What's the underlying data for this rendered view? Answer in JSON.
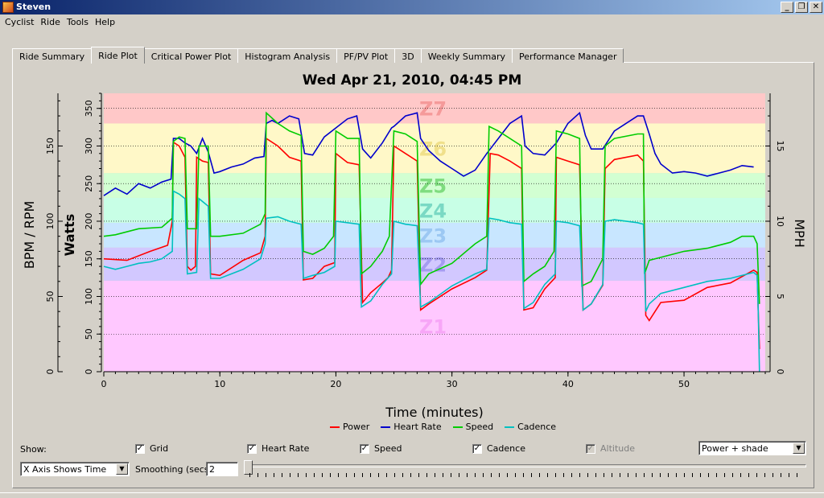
{
  "window": {
    "title": "Steven",
    "buttons": [
      "_",
      "❐",
      "✕"
    ]
  },
  "menu": [
    {
      "label": "Cyclist",
      "u": "C"
    },
    {
      "label": "Ride",
      "u": "R"
    },
    {
      "label": "Tools",
      "u": "T"
    },
    {
      "label": "Help",
      "u": "H"
    }
  ],
  "tabs": [
    "Ride Summary",
    "Ride Plot",
    "Critical Power Plot",
    "Histogram Analysis",
    "PF/PV Plot",
    "3D",
    "Weekly Summary",
    "Performance Manager"
  ],
  "active_tab": "Ride Plot",
  "chart_data": {
    "type": "line",
    "title": "Wed Apr 21, 2010, 04:45 PM",
    "xlabel": "Time (minutes)",
    "ylabel_left_outer": "BPM / RPM",
    "ylabel_left_inner": "Watts",
    "ylabel_right": "MPH",
    "xlim": [
      0,
      57
    ],
    "xticks": [
      0,
      10,
      20,
      30,
      40,
      50
    ],
    "watts_ylim": [
      0,
      370
    ],
    "watts_ticks": [
      0,
      50,
      100,
      150,
      200,
      250,
      300,
      350
    ],
    "bpm_ylim": [
      0,
      185
    ],
    "bpm_ticks": [
      0,
      50,
      100,
      150
    ],
    "mph_ylim": [
      0,
      18.5
    ],
    "mph_ticks": [
      0,
      5,
      10,
      15
    ],
    "grid": true,
    "legend_position": "bottom",
    "zones": [
      {
        "name": "Z1",
        "from": 0,
        "to": 121,
        "color": "#ffc8ff"
      },
      {
        "name": "Z2",
        "from": 121,
        "to": 165,
        "color": "#d2c8ff"
      },
      {
        "name": "Z3",
        "from": 165,
        "to": 198,
        "color": "#c8e6ff"
      },
      {
        "name": "Z4",
        "from": 198,
        "to": 231,
        "color": "#c8ffe6"
      },
      {
        "name": "Z5",
        "from": 231,
        "to": 264,
        "color": "#d2ffd2"
      },
      {
        "name": "Z6",
        "from": 264,
        "to": 330,
        "color": "#fff8c8"
      },
      {
        "name": "Z7",
        "from": 330,
        "to": 370,
        "color": "#ffc8c8"
      }
    ],
    "series": [
      {
        "name": "Power",
        "axis": "watts",
        "color": "#ff0000",
        "points": [
          [
            0,
            150
          ],
          [
            2,
            148
          ],
          [
            4,
            160
          ],
          [
            5.5,
            168
          ],
          [
            5.9,
            200
          ],
          [
            6,
            305
          ],
          [
            6.5,
            300
          ],
          [
            7,
            285
          ],
          [
            7.2,
            140
          ],
          [
            7.5,
            135
          ],
          [
            7.9,
            140
          ],
          [
            8,
            285
          ],
          [
            8.5,
            280
          ],
          [
            9,
            278
          ],
          [
            9.2,
            130
          ],
          [
            10,
            128
          ],
          [
            12,
            148
          ],
          [
            13.5,
            158
          ],
          [
            13.9,
            180
          ],
          [
            14,
            310
          ],
          [
            15,
            300
          ],
          [
            16,
            285
          ],
          [
            17,
            280
          ],
          [
            17.2,
            122
          ],
          [
            18,
            124
          ],
          [
            19,
            140
          ],
          [
            19.9,
            145
          ],
          [
            20,
            290
          ],
          [
            21,
            278
          ],
          [
            22,
            275
          ],
          [
            22.3,
            92
          ],
          [
            23,
            105
          ],
          [
            24,
            118
          ],
          [
            24.5,
            125
          ],
          [
            24.8,
            135
          ],
          [
            25,
            300
          ],
          [
            26,
            290
          ],
          [
            27,
            280
          ],
          [
            27.3,
            82
          ],
          [
            28,
            90
          ],
          [
            30,
            110
          ],
          [
            32,
            125
          ],
          [
            33,
            135
          ],
          [
            33.3,
            290
          ],
          [
            34,
            288
          ],
          [
            35,
            280
          ],
          [
            36,
            270
          ],
          [
            36.2,
            82
          ],
          [
            37,
            85
          ],
          [
            38,
            110
          ],
          [
            38.9,
            125
          ],
          [
            39,
            285
          ],
          [
            40,
            280
          ],
          [
            41,
            275
          ],
          [
            41.3,
            82
          ],
          [
            42,
            90
          ],
          [
            43,
            115
          ],
          [
            43.2,
            270
          ],
          [
            44,
            282
          ],
          [
            46,
            288
          ],
          [
            46.5,
            280
          ],
          [
            46.7,
            75
          ],
          [
            47,
            68
          ],
          [
            48,
            92
          ],
          [
            50,
            95
          ],
          [
            52,
            112
          ],
          [
            54,
            118
          ],
          [
            56,
            135
          ],
          [
            56.3,
            132
          ],
          [
            56.4,
            80
          ],
          [
            56.5,
            30
          ]
        ]
      },
      {
        "name": "Heart Rate",
        "axis": "bpm",
        "color": "#0000cc",
        "points": [
          [
            0,
            117
          ],
          [
            1,
            122
          ],
          [
            2,
            118
          ],
          [
            3,
            125
          ],
          [
            4,
            122
          ],
          [
            5,
            126
          ],
          [
            5.8,
            128
          ],
          [
            6,
            155
          ],
          [
            6.5,
            155
          ],
          [
            7,
            152
          ],
          [
            7.5,
            150
          ],
          [
            8,
            145
          ],
          [
            8.5,
            155
          ],
          [
            9,
            146
          ],
          [
            9.5,
            132
          ],
          [
            10,
            133
          ],
          [
            11,
            136
          ],
          [
            12,
            138
          ],
          [
            13,
            142
          ],
          [
            13.8,
            143
          ],
          [
            14,
            165
          ],
          [
            14.5,
            167
          ],
          [
            15,
            165
          ],
          [
            16,
            170
          ],
          [
            16.8,
            168
          ],
          [
            17.3,
            145
          ],
          [
            18,
            144
          ],
          [
            19,
            156
          ],
          [
            20,
            162
          ],
          [
            21,
            168
          ],
          [
            21.8,
            170
          ],
          [
            22.3,
            148
          ],
          [
            23,
            142
          ],
          [
            24,
            152
          ],
          [
            24.8,
            162
          ],
          [
            25,
            163
          ],
          [
            26,
            170
          ],
          [
            27,
            172
          ],
          [
            27.3,
            155
          ],
          [
            28,
            147
          ],
          [
            29,
            140
          ],
          [
            30,
            135
          ],
          [
            31,
            130
          ],
          [
            32,
            134
          ],
          [
            33,
            145
          ],
          [
            34,
            155
          ],
          [
            35,
            165
          ],
          [
            36,
            170
          ],
          [
            36.3,
            150
          ],
          [
            37,
            145
          ],
          [
            38,
            144
          ],
          [
            39,
            152
          ],
          [
            40,
            165
          ],
          [
            41,
            172
          ],
          [
            41.5,
            157
          ],
          [
            42,
            148
          ],
          [
            43,
            148
          ],
          [
            44,
            160
          ],
          [
            46,
            170
          ],
          [
            46.5,
            170
          ],
          [
            47,
            158
          ],
          [
            47.5,
            145
          ],
          [
            48,
            138
          ],
          [
            49,
            132
          ],
          [
            50,
            133
          ],
          [
            51,
            132
          ],
          [
            52,
            130
          ],
          [
            54,
            134
          ],
          [
            55,
            137
          ],
          [
            56,
            136
          ]
        ]
      },
      {
        "name": "Speed",
        "axis": "mph",
        "color": "#00cc00",
        "points": [
          [
            0,
            9
          ],
          [
            1,
            9.1
          ],
          [
            3,
            9.5
          ],
          [
            5,
            9.6
          ],
          [
            5.9,
            10.2
          ],
          [
            6,
            15.3
          ],
          [
            6.5,
            15.6
          ],
          [
            7,
            15.5
          ],
          [
            7.2,
            9.5
          ],
          [
            8,
            9.5
          ],
          [
            8.2,
            15
          ],
          [
            9,
            15
          ],
          [
            9.2,
            9
          ],
          [
            10,
            9
          ],
          [
            12,
            9.2
          ],
          [
            13.5,
            9.8
          ],
          [
            13.9,
            10.5
          ],
          [
            14,
            17.2
          ],
          [
            15,
            16.5
          ],
          [
            16,
            16
          ],
          [
            17,
            15.7
          ],
          [
            17.2,
            8
          ],
          [
            18,
            7.8
          ],
          [
            19,
            8.2
          ],
          [
            19.8,
            9
          ],
          [
            20,
            16
          ],
          [
            21,
            15.5
          ],
          [
            22,
            15.5
          ],
          [
            22.2,
            6.5
          ],
          [
            23,
            7
          ],
          [
            24,
            8
          ],
          [
            24.6,
            9
          ],
          [
            25,
            16
          ],
          [
            26,
            15.8
          ],
          [
            27,
            15.3
          ],
          [
            27.3,
            5.8
          ],
          [
            28,
            6.5
          ],
          [
            30,
            7.2
          ],
          [
            32,
            8.5
          ],
          [
            33,
            9
          ],
          [
            33.2,
            16.3
          ],
          [
            34,
            16
          ],
          [
            36,
            15
          ],
          [
            36.2,
            6
          ],
          [
            37,
            6.5
          ],
          [
            38,
            7
          ],
          [
            38.8,
            8
          ],
          [
            39,
            16
          ],
          [
            40,
            15.8
          ],
          [
            41,
            15.5
          ],
          [
            41.2,
            5.7
          ],
          [
            42,
            6
          ],
          [
            43,
            7.5
          ],
          [
            43.2,
            15
          ],
          [
            44,
            15.5
          ],
          [
            46,
            15.8
          ],
          [
            46.5,
            15.8
          ],
          [
            46.6,
            6.5
          ],
          [
            47,
            7.4
          ],
          [
            48,
            7.6
          ],
          [
            50,
            8
          ],
          [
            52,
            8.2
          ],
          [
            54,
            8.6
          ],
          [
            55,
            9
          ],
          [
            56,
            9
          ],
          [
            56.3,
            8.5
          ],
          [
            56.5,
            4.5
          ]
        ]
      },
      {
        "name": "Cadence",
        "axis": "bpm",
        "color": "#00c0c0",
        "points": [
          [
            0,
            70
          ],
          [
            1,
            68
          ],
          [
            2,
            70
          ],
          [
            3,
            72
          ],
          [
            4,
            73
          ],
          [
            5,
            75
          ],
          [
            5.9,
            80
          ],
          [
            6,
            120
          ],
          [
            6.5,
            118
          ],
          [
            7,
            115
          ],
          [
            7.2,
            65
          ],
          [
            8,
            66
          ],
          [
            8.2,
            115
          ],
          [
            9,
            110
          ],
          [
            9.2,
            62
          ],
          [
            10,
            62
          ],
          [
            12,
            68
          ],
          [
            13.5,
            75
          ],
          [
            13.9,
            85
          ],
          [
            14,
            102
          ],
          [
            15,
            103
          ],
          [
            16,
            100
          ],
          [
            17,
            98
          ],
          [
            17.2,
            62
          ],
          [
            18,
            64
          ],
          [
            19,
            66
          ],
          [
            19.9,
            70
          ],
          [
            20,
            100
          ],
          [
            21,
            99
          ],
          [
            22,
            98
          ],
          [
            22.2,
            43
          ],
          [
            23,
            47
          ],
          [
            24,
            58
          ],
          [
            24.8,
            65
          ],
          [
            25,
            100
          ],
          [
            26,
            98
          ],
          [
            27,
            97
          ],
          [
            27.3,
            43
          ],
          [
            28,
            46
          ],
          [
            30,
            57
          ],
          [
            32,
            65
          ],
          [
            33,
            68
          ],
          [
            33.2,
            102
          ],
          [
            34,
            101
          ],
          [
            35,
            99
          ],
          [
            36,
            98
          ],
          [
            36.2,
            42
          ],
          [
            37,
            46
          ],
          [
            38,
            58
          ],
          [
            38.9,
            65
          ],
          [
            39,
            100
          ],
          [
            40,
            99
          ],
          [
            41,
            97
          ],
          [
            41.3,
            41
          ],
          [
            42,
            45
          ],
          [
            43,
            58
          ],
          [
            43.2,
            100
          ],
          [
            44,
            101
          ],
          [
            46,
            99
          ],
          [
            46.5,
            98
          ],
          [
            46.7,
            40
          ],
          [
            47,
            45
          ],
          [
            48,
            52
          ],
          [
            50,
            56
          ],
          [
            52,
            60
          ],
          [
            54,
            62
          ],
          [
            56,
            66
          ],
          [
            56.3,
            64
          ],
          [
            56.4,
            40
          ],
          [
            56.5,
            0
          ]
        ]
      }
    ]
  },
  "controls": {
    "show_label": "Show:",
    "checks": [
      {
        "label": "Grid",
        "checked": true,
        "enabled": true
      },
      {
        "label": "Heart Rate",
        "checked": true,
        "enabled": true
      },
      {
        "label": "Speed",
        "checked": true,
        "enabled": true
      },
      {
        "label": "Cadence",
        "checked": true,
        "enabled": true
      },
      {
        "label": "Altitude",
        "checked": true,
        "enabled": false
      }
    ],
    "shade_select": "Power + shade",
    "xaxis_select": "X Axis Shows Time",
    "smoothing_label": "Smoothing (secs)",
    "smoothing_value": "2"
  }
}
